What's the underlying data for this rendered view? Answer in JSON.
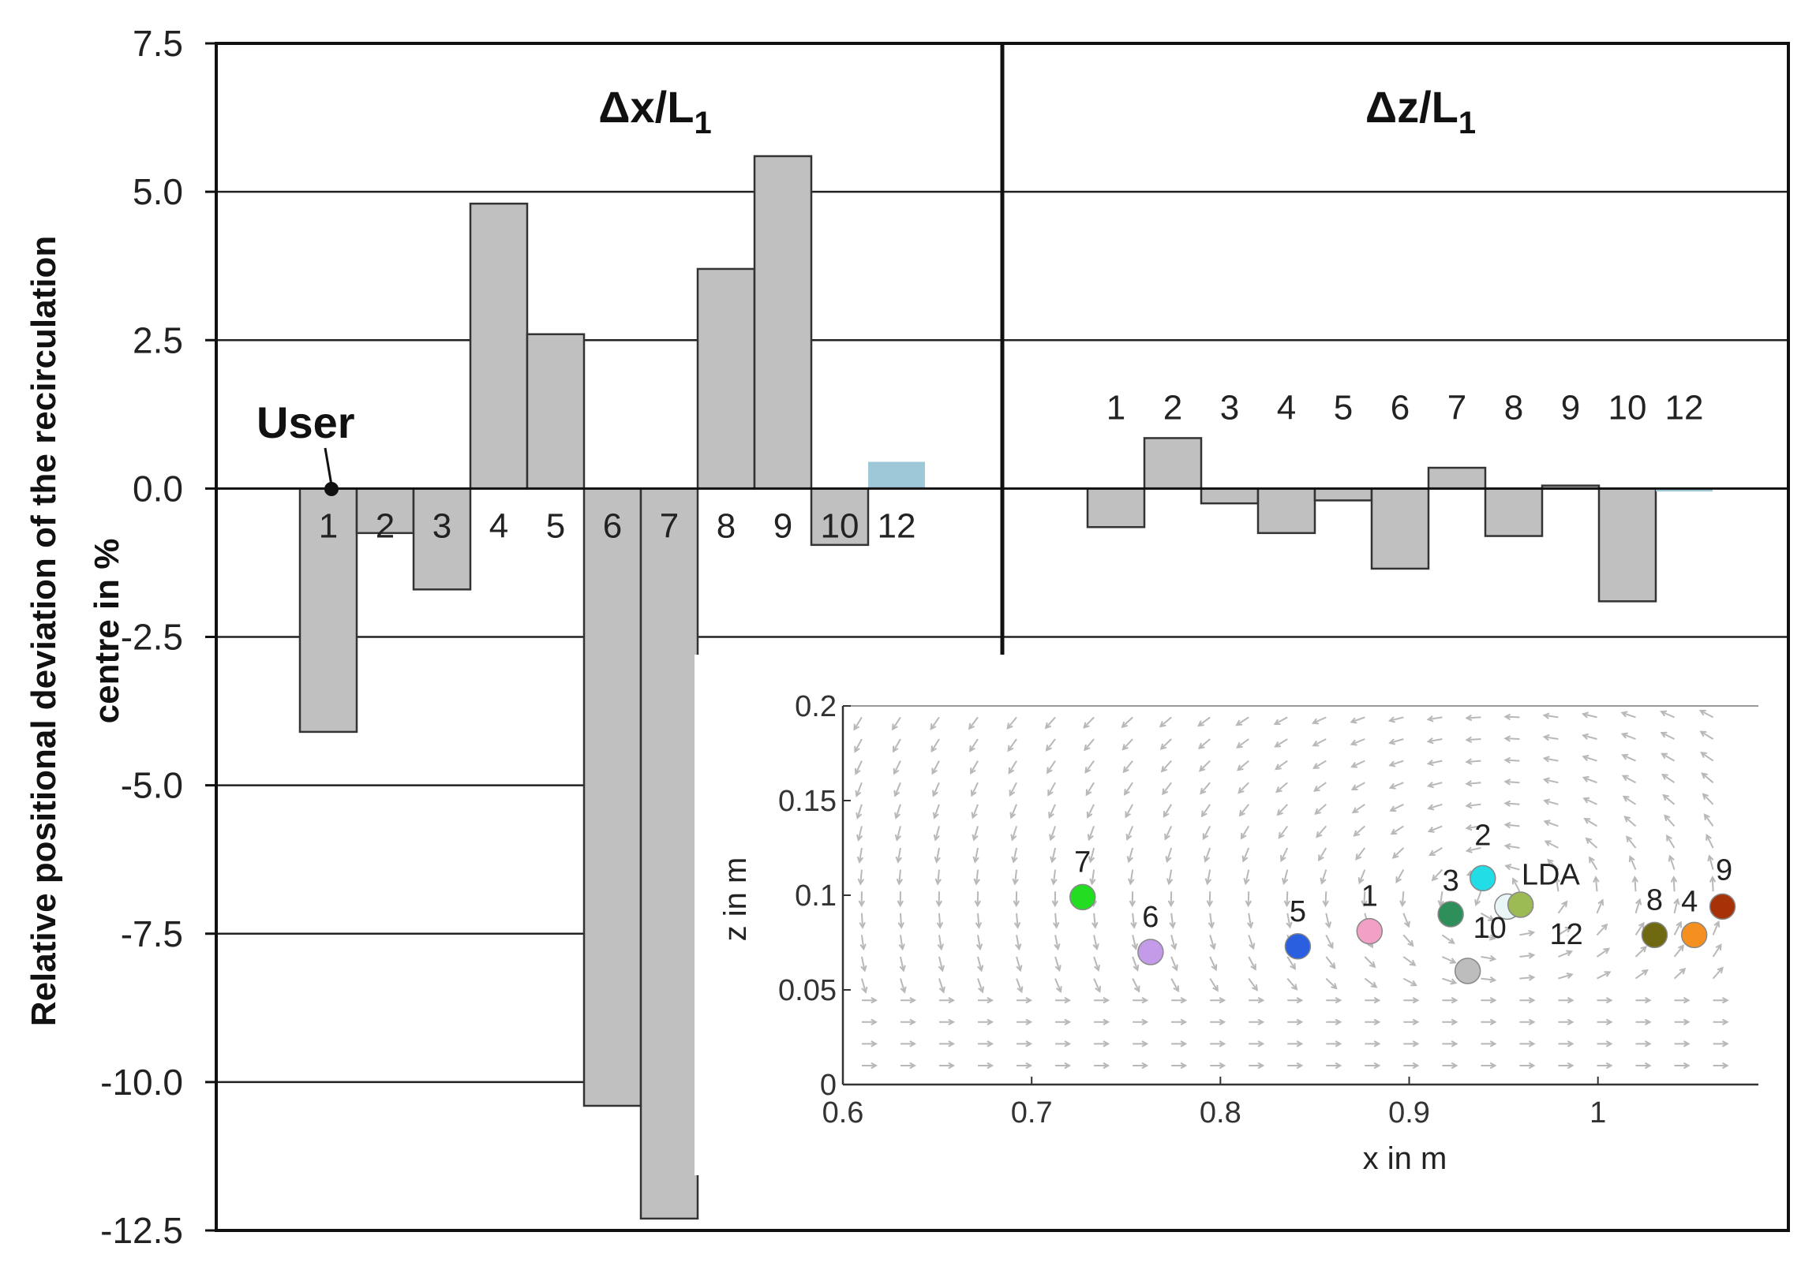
{
  "chart_data": [
    {
      "type": "bar",
      "title": "Δx/L1",
      "title_main": "Δx/L",
      "title_sub": "1",
      "ylabel_line1": "Relative positional deviation of the recirculation",
      "ylabel_line2": "centre in %",
      "ylim": [
        -12.5,
        7.5
      ],
      "yticks": [
        "7.5",
        "5.0",
        "2.5",
        "0.0",
        "-2.5",
        "-5.0",
        "-7.5",
        "-10.0",
        "-12.5"
      ],
      "ytick_values": [
        7.5,
        5.0,
        2.5,
        0.0,
        -2.5,
        -5.0,
        -7.5,
        -10.0,
        -12.5
      ],
      "categories": [
        "1",
        "2",
        "3",
        "4",
        "5",
        "6",
        "7",
        "8",
        "9",
        "10",
        "12"
      ],
      "values": [
        -4.1,
        -0.75,
        -1.7,
        4.8,
        2.6,
        -10.4,
        -12.3,
        3.7,
        5.6,
        -0.95,
        0.45
      ],
      "highlight_category": "12",
      "annotation": "User",
      "colors": {
        "bar": "#c0c0c0",
        "highlight": "#9ec8d8",
        "edge": "#333333"
      }
    },
    {
      "type": "bar",
      "title": "Δz/L1",
      "title_main": "Δz/L",
      "title_sub": "1",
      "ylim": [
        -12.5,
        7.5
      ],
      "categories": [
        "1",
        "2",
        "3",
        "4",
        "5",
        "6",
        "7",
        "8",
        "9",
        "10",
        "12"
      ],
      "values": [
        -0.65,
        0.85,
        -0.25,
        -0.75,
        -0.2,
        -1.35,
        0.35,
        -0.8,
        0.05,
        -1.9,
        -0.05
      ],
      "highlight_category": "12",
      "colors": {
        "bar": "#c0c0c0",
        "highlight": "#9ec8d8",
        "edge": "#333333"
      }
    },
    {
      "type": "scatter",
      "inset": true,
      "xlabel": "x in m",
      "ylabel": "z in m",
      "xlim": [
        0.6,
        1.085
      ],
      "ylim": [
        0,
        0.2
      ],
      "xticks": [
        "0.6",
        "0.7",
        "0.8",
        "0.9",
        "1"
      ],
      "xtick_values": [
        0.6,
        0.7,
        0.8,
        0.9,
        1.0
      ],
      "yticks": [
        "0.2",
        "0.15",
        "0.1",
        "0.05",
        "0"
      ],
      "ytick_values": [
        0.2,
        0.15,
        0.1,
        0.05,
        0.0
      ],
      "points": [
        {
          "label": "7",
          "x": 0.727,
          "y": 0.099,
          "color": "#22dd22"
        },
        {
          "label": "6",
          "x": 0.763,
          "y": 0.07,
          "color": "#c39be8"
        },
        {
          "label": "5",
          "x": 0.841,
          "y": 0.073,
          "color": "#2a5fe0"
        },
        {
          "label": "1",
          "x": 0.879,
          "y": 0.081,
          "color": "#f2a0c6"
        },
        {
          "label": "3",
          "x": 0.922,
          "y": 0.09,
          "color": "#2f8f5a"
        },
        {
          "label": "2",
          "x": 0.939,
          "y": 0.109,
          "color": "#22dde6"
        },
        {
          "label": "LDA",
          "x": 0.952,
          "y": 0.094,
          "color": "#e8f6f8"
        },
        {
          "label": "12",
          "x": 0.959,
          "y": 0.095,
          "color": "#9dbb55"
        },
        {
          "label": "10",
          "x": 0.931,
          "y": 0.06,
          "color": "#bdbdbd"
        },
        {
          "label": "8",
          "x": 1.03,
          "y": 0.079,
          "color": "#6f6a12"
        },
        {
          "label": "4",
          "x": 1.051,
          "y": 0.079,
          "color": "#f59020"
        },
        {
          "label": "9",
          "x": 1.066,
          "y": 0.094,
          "color": "#a83208"
        }
      ]
    }
  ]
}
